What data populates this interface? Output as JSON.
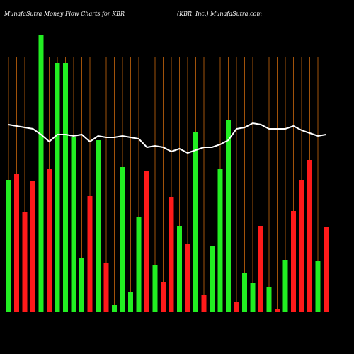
{
  "chart_data": {
    "type": "bar",
    "title": "MunafaSutra  Money Flow  Charts for KBR",
    "subtitle": "(KBR, Inc.) MunafaSutra.com",
    "categories": [
      null,
      null,
      null,
      null,
      null,
      null,
      null,
      null,
      null,
      null,
      null,
      null,
      null,
      null,
      null,
      null,
      null,
      null,
      null,
      null,
      null,
      null,
      null,
      null,
      null,
      null,
      null,
      null,
      null,
      null,
      null,
      null,
      null,
      null,
      null,
      null,
      null,
      null,
      null,
      null
    ],
    "values": [
      186,
      194,
      141,
      185,
      390,
      202,
      351,
      351,
      246,
      75,
      163,
      242,
      68,
      9,
      204,
      28,
      133,
      199,
      66,
      42,
      162,
      121,
      96,
      253,
      23,
      92,
      201,
      270,
      13,
      55,
      40,
      121,
      34,
      4,
      73,
      142,
      186,
      214,
      71,
      119
    ],
    "colors": [
      "#22ee22",
      "#ff1a1a",
      "#ff1a1a",
      "#ff1a1a",
      "#22ee22",
      "#ff1a1a",
      "#22ee22",
      "#22ee22",
      "#22ee22",
      "#22ee22",
      "#ff1a1a",
      "#22ee22",
      "#ff1a1a",
      "#22ee22",
      "#22ee22",
      "#22ee22",
      "#22ee22",
      "#ff1a1a",
      "#22ee22",
      "#ff1a1a",
      "#ff1a1a",
      "#22ee22",
      "#ff1a1a",
      "#22ee22",
      "#ff1a1a",
      "#22ee22",
      "#22ee22",
      "#22ee22",
      "#ff1a1a",
      "#22ee22",
      "#22ee22",
      "#ff1a1a",
      "#22ee22",
      "#ff1a1a",
      "#22ee22",
      "#ff1a1a",
      "#ff1a1a",
      "#ff1a1a",
      "#22ee22",
      "#ff1a1a"
    ],
    "line_values": [
      264,
      262,
      260,
      258,
      250,
      240,
      250,
      250,
      248,
      250,
      240,
      248,
      246,
      246,
      248,
      246,
      244,
      232,
      234,
      232,
      226,
      230,
      224,
      228,
      232,
      232,
      236,
      242,
      258,
      260,
      266,
      264,
      258,
      258,
      258,
      262,
      256,
      252,
      248,
      250
    ],
    "line_color": "#ffffff",
    "grid_color": "#a0520a",
    "ylim": [
      0,
      400
    ]
  }
}
